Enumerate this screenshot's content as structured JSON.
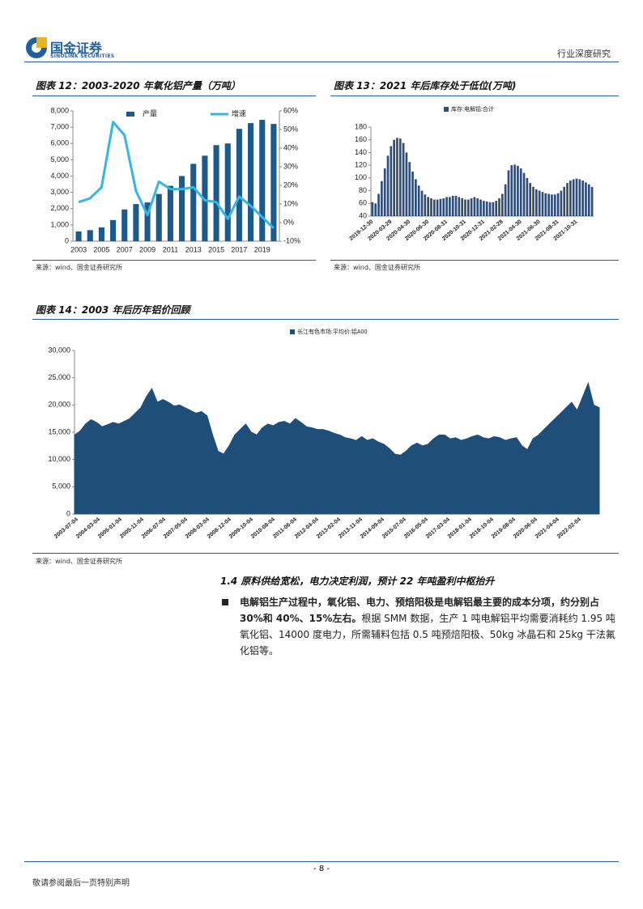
{
  "header": {
    "company": "国金证券",
    "company_en": "SINOLINK SECURITIES",
    "report_type": "行业深度研究"
  },
  "chart_data": [
    {
      "type": "bar",
      "title": "图表 12：2003-2020 年氧化铝产量（万吨）",
      "source": "来源：wind、国金证券研究所",
      "categories": [
        "2003",
        null,
        "2005",
        null,
        "2007",
        null,
        "2009",
        null,
        "2011",
        null,
        "2013",
        null,
        "2015",
        null,
        "2017",
        null,
        "2019",
        null
      ],
      "series": [
        {
          "name": "产量",
          "color": "#1c5a8c",
          "type": "bar",
          "values": [
            600,
            680,
            850,
            1300,
            1950,
            2280,
            2380,
            2900,
            3400,
            4000,
            4750,
            5250,
            5900,
            6000,
            6900,
            7250,
            7450,
            7200
          ]
        },
        {
          "name": "增速",
          "color": "#33b5e8",
          "type": "line",
          "axis": "y2",
          "values": [
            11,
            13,
            19,
            54,
            47,
            17,
            4,
            22,
            18,
            18,
            19,
            12,
            11,
            2,
            14,
            9,
            3,
            -3
          ]
        }
      ],
      "ylim": [
        0,
        8000
      ],
      "yticks": [
        0,
        {
          "value": 1000,
          "label": "1,000"
        },
        {
          "value": 2000,
          "label": "2,000"
        },
        {
          "value": 3000,
          "label": "3,000"
        },
        {
          "value": 4000,
          "label": "4,000"
        },
        {
          "value": 5000,
          "label": "5,000"
        },
        {
          "value": 6000,
          "label": "6,000"
        },
        {
          "value": 7000,
          "label": "7,000"
        },
        {
          "value": 8000,
          "label": "8,000"
        }
      ],
      "y2lim": [
        -10,
        60
      ],
      "y2ticks": [
        {
          "value": -10,
          "label": "-10%"
        },
        {
          "value": 0,
          "label": "0%"
        },
        {
          "value": 10,
          "label": "10%"
        },
        {
          "value": 20,
          "label": "20%"
        },
        {
          "value": 30,
          "label": "30%"
        },
        {
          "value": 40,
          "label": "40%"
        },
        {
          "value": 50,
          "label": "50%"
        },
        {
          "value": 60,
          "label": "60%"
        }
      ],
      "grid": false,
      "legend": "top"
    },
    {
      "type": "bar",
      "title": "图表 13：2021 年后库存处于低位(万吨)",
      "source": "来源：wind、国金证券研究所",
      "categories": [
        "2019-12-30",
        null,
        null,
        null,
        null,
        null,
        "2020-03-29",
        null,
        null,
        null,
        null,
        null,
        "2020-04-30",
        null,
        null,
        null,
        null,
        null,
        "2020-06-30",
        null,
        null,
        null,
        null,
        null,
        "2020-08-31",
        null,
        null,
        null,
        null,
        null,
        "2020-10-31",
        null,
        null,
        null,
        null,
        null,
        "2020-12-31",
        null,
        null,
        null,
        null,
        null,
        "2021-02-28",
        null,
        null,
        null,
        null,
        null,
        "2021-04-30",
        null,
        null,
        null,
        null,
        null,
        "2021-06-30",
        null,
        null,
        null,
        null,
        null,
        "2021-08-31",
        null,
        null,
        null,
        null,
        null,
        "2021-10-31",
        null,
        null,
        null,
        null,
        null
      ],
      "series": [
        {
          "name": "库存:电解铝:合计",
          "color": "#2e4d7b",
          "values": [
            62,
            60,
            75,
            95,
            115,
            135,
            150,
            160,
            163,
            162,
            155,
            140,
            125,
            110,
            98,
            88,
            80,
            74,
            70,
            68,
            66,
            66,
            67,
            68,
            70,
            70,
            72,
            72,
            70,
            68,
            66,
            66,
            68,
            70,
            68,
            66,
            64,
            63,
            62,
            62,
            64,
            68,
            75,
            90,
            112,
            120,
            121,
            119,
            115,
            108,
            100,
            92,
            86,
            82,
            80,
            78,
            76,
            75,
            74,
            74,
            76,
            80,
            86,
            92,
            96,
            98,
            99,
            98,
            96,
            93,
            90,
            86
          ]
        }
      ],
      "ylim": [
        40,
        180
      ],
      "yticks": [
        40,
        60,
        80,
        100,
        120,
        140,
        160,
        180
      ],
      "grid": false,
      "legend": "top"
    },
    {
      "type": "area",
      "title": "图表 14：2003 年后历年铝价回顾",
      "source": "来源：wind、国金证券研究所",
      "categories": [
        "2003-07-04",
        null,
        null,
        null,
        "2004-03-04",
        null,
        null,
        null,
        "2005-01-04",
        null,
        null,
        null,
        "2005-11-04",
        null,
        null,
        null,
        "2006-07-04",
        null,
        null,
        null,
        "2007-05-04",
        null,
        null,
        null,
        "2008-03-04",
        null,
        null,
        null,
        "2008-12-04",
        null,
        null,
        null,
        "2009-10-04",
        null,
        null,
        null,
        "2010-08-04",
        null,
        null,
        null,
        "2011-06-04",
        null,
        null,
        null,
        "2012-04-04",
        null,
        null,
        null,
        "2013-02-04",
        null,
        null,
        null,
        "2013-11-04",
        null,
        null,
        null,
        "2014-09-04",
        null,
        null,
        null,
        "2015-07-04",
        null,
        null,
        null,
        "2016-05-04",
        null,
        null,
        null,
        "2017-03-04",
        null,
        null,
        null,
        "2018-01-04",
        null,
        null,
        null,
        "2018-10-04",
        null,
        null,
        null,
        "2019-08-04",
        null,
        null,
        null,
        "2020-06-04",
        null,
        null,
        null,
        "2021-04-04",
        null,
        null,
        null,
        "2022-02-04",
        null,
        null,
        null
      ],
      "series": [
        {
          "name": "长江有色市场:平均价:铝A00",
          "color": "#1f4e79",
          "values": [
            14500,
            15200,
            16500,
            17300,
            16800,
            16000,
            16400,
            16800,
            16500,
            17000,
            17500,
            18500,
            19500,
            21500,
            23000,
            20500,
            21000,
            20500,
            19800,
            20000,
            19500,
            19000,
            18500,
            18800,
            18000,
            14500,
            11500,
            11000,
            12500,
            14500,
            15500,
            16500,
            15000,
            14500,
            15800,
            16500,
            16200,
            16800,
            17000,
            16500,
            17500,
            16800,
            16000,
            15800,
            15500,
            15500,
            15200,
            14800,
            14500,
            14000,
            13800,
            13500,
            14200,
            13500,
            13800,
            13200,
            12800,
            12000,
            11000,
            10800,
            11500,
            12500,
            13000,
            12500,
            12800,
            13800,
            14500,
            14500,
            13800,
            14000,
            13500,
            13800,
            14200,
            14500,
            14000,
            13800,
            14200,
            14000,
            13500,
            13800,
            14000,
            12500,
            11800,
            13800,
            14500,
            15500,
            16500,
            17500,
            18500,
            19500,
            20500,
            19000,
            21500,
            24000,
            20000,
            19500
          ]
        }
      ],
      "ylim": [
        0,
        30000
      ],
      "yticks": [
        0,
        {
          "value": 5000,
          "label": "5,000"
        },
        {
          "value": 10000,
          "label": "10,000"
        },
        {
          "value": 15000,
          "label": "15,000"
        },
        {
          "value": 20000,
          "label": "20,000"
        },
        {
          "value": 25000,
          "label": "25,000"
        },
        {
          "value": 30000,
          "label": "30,000"
        }
      ],
      "grid": false,
      "legend": "top"
    }
  ],
  "section": {
    "heading": "1.4 原料供给宽松，电力决定利润，预计 22 年吨盈利中枢抬升",
    "bullet_bold": "电解铝生产过程中，氧化铝、电力、预焙阳极是电解铝最主要的成本分项，约分别占 30%和 40%、15%左右。",
    "bullet_text": "根据 SMM 数据，生产 1 吨电解铝平均需要消耗约 1.95 吨氧化铝、14000 度电力，所需辅料包括 0.5 吨预焙阳极、50kg 冰晶石和 25kg 干法氟化铝等。"
  },
  "footer": {
    "page": "- 8 -",
    "disclaimer": "敬请参阅最后一页特别声明"
  }
}
